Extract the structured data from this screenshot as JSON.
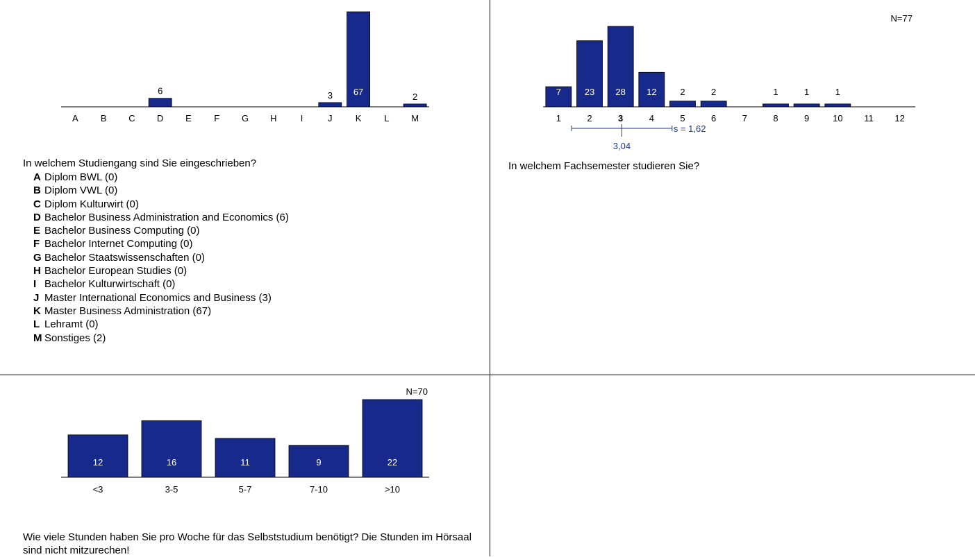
{
  "colors": {
    "bar": "#172a8c",
    "stat": "#1f3a8f",
    "axis": "#000000"
  },
  "chart_data": [
    {
      "type": "bar",
      "id": "studiengang",
      "categories": [
        "A",
        "B",
        "C",
        "D",
        "E",
        "F",
        "G",
        "H",
        "I",
        "J",
        "K",
        "L",
        "M"
      ],
      "values": [
        0,
        0,
        0,
        6,
        0,
        0,
        0,
        0,
        0,
        3,
        67,
        0,
        2
      ],
      "value_labels": [
        "",
        "",
        "",
        "6",
        "",
        "",
        "",
        "",
        "",
        "3",
        "67",
        "",
        "2"
      ],
      "ylim": [
        0,
        67
      ],
      "question": "In welchem Studiengang sind Sie eingeschrieben?",
      "legend": [
        {
          "key": "A",
          "text": "Diplom BWL (0)"
        },
        {
          "key": "B",
          "text": "Diplom VWL (0)"
        },
        {
          "key": "C",
          "text": "Diplom Kulturwirt (0)"
        },
        {
          "key": "D",
          "text": "Bachelor Business Administration and Economics (6)"
        },
        {
          "key": "E",
          "text": "Bachelor Business Computing (0)"
        },
        {
          "key": "F",
          "text": "Bachelor Internet Computing (0)"
        },
        {
          "key": "G",
          "text": "Bachelor Staatswissenschaften (0)"
        },
        {
          "key": "H",
          "text": "Bachelor European Studies (0)"
        },
        {
          "key": "I",
          "text": "Bachelor Kulturwirtschaft (0)"
        },
        {
          "key": "J",
          "text": "Master International Economics and Business (3)"
        },
        {
          "key": "K",
          "text": "Master Business Administration (67)"
        },
        {
          "key": "L",
          "text": "Lehramt (0)"
        },
        {
          "key": "M",
          "text": "Sonstiges (2)"
        }
      ]
    },
    {
      "type": "bar",
      "id": "fachsemester",
      "n_label": "N=77",
      "categories": [
        "1",
        "2",
        "3",
        "4",
        "5",
        "6",
        "7",
        "8",
        "9",
        "10",
        "11",
        "12"
      ],
      "values": [
        7,
        23,
        28,
        12,
        2,
        2,
        0,
        1,
        1,
        1,
        0,
        0
      ],
      "value_labels": [
        "7",
        "23",
        "28",
        "12",
        "2",
        "2",
        "",
        "1",
        "1",
        "1",
        "",
        ""
      ],
      "ylim": [
        0,
        28
      ],
      "mean": 3.04,
      "mean_label": "3,04",
      "sd": 1.62,
      "sd_label": "s = 1,62",
      "median_category": "3",
      "question": "In welchem Fachsemester studieren Sie?"
    },
    {
      "type": "bar",
      "id": "selbststudium",
      "n_label": "N=70",
      "categories": [
        "<3",
        "3-5",
        "5-7",
        "7-10",
        ">10"
      ],
      "values": [
        12,
        16,
        11,
        9,
        22
      ],
      "value_labels": [
        "12",
        "16",
        "11",
        "9",
        "22"
      ],
      "ylim": [
        0,
        22
      ],
      "question": "Wie viele Stunden haben Sie pro Woche für das Selbststudium benötigt? Die Stunden im Hörsaal sind nicht mitzurechen!"
    }
  ]
}
